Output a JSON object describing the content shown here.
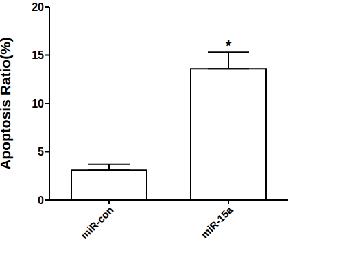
{
  "chart_data": {
    "type": "bar",
    "categories": [
      "miR-con",
      "miR-15a"
    ],
    "values": [
      3.1,
      13.6
    ],
    "errors": [
      0.6,
      1.7
    ],
    "annotations": [
      {
        "text": "*",
        "category": "miR-15a"
      }
    ],
    "ylabel": "Apoptosis Ratio(%)",
    "ylim": [
      0,
      20
    ],
    "yticks": [
      0,
      5,
      10,
      15,
      20
    ],
    "color": "#ffffff",
    "grid": false
  }
}
